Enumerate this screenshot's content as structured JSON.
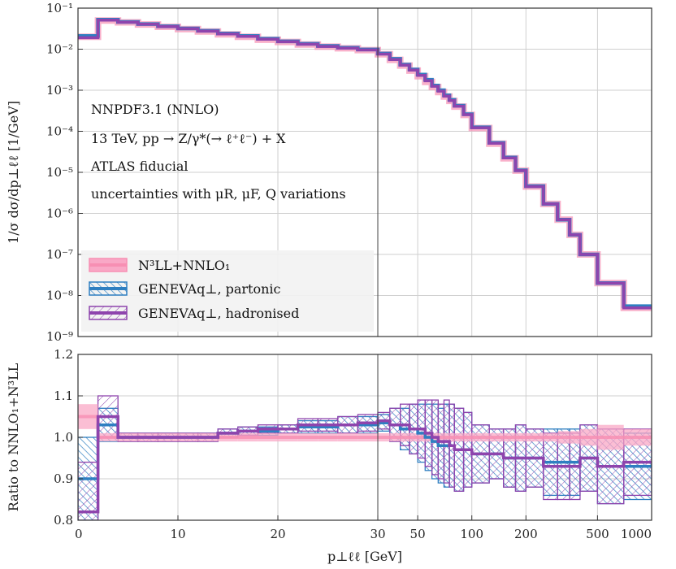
{
  "chart_data": [
    {
      "type": "line",
      "panel": "main",
      "scale": "log-y",
      "xlabel": "p⊥ℓℓ [GeV]",
      "ylabel": "1/σ dσ/dp⊥ℓℓ [1/GeV]",
      "ylim": [
        1e-09,
        0.1
      ],
      "yticks": [
        "10⁻⁹",
        "10⁻⁸",
        "10⁻⁷",
        "10⁻⁶",
        "10⁻⁵",
        "10⁻⁴",
        "10⁻³",
        "10⁻²",
        "10⁻¹"
      ],
      "grid": true,
      "x_edges": [
        0,
        2,
        4,
        6,
        8,
        10,
        12,
        14,
        16,
        18,
        20,
        22,
        24,
        26,
        28,
        30,
        35,
        40,
        45,
        50,
        55,
        60,
        65,
        70,
        75,
        80,
        90,
        100,
        125,
        150,
        175,
        200,
        250,
        300,
        350,
        400,
        500,
        700,
        1000
      ],
      "series": [
        {
          "name": "N³LL+NNLO₁",
          "color": "#f78fb3",
          "values": [
            0.02,
            0.05,
            0.045,
            0.04,
            0.035,
            0.031,
            0.027,
            0.023,
            0.02,
            0.017,
            0.015,
            0.013,
            0.0115,
            0.0105,
            0.0095,
            0.0075,
            0.0055,
            0.004,
            0.003,
            0.0022,
            0.0016,
            0.0012,
            0.0009,
            0.0007,
            0.00055,
            0.0004,
            0.00025,
            0.00012,
            5e-05,
            2.2e-05,
            1.1e-05,
            4.5e-06,
            1.7e-06,
            7e-07,
            3e-07,
            1e-07,
            2e-08,
            5e-09
          ]
        },
        {
          "name": "GENEVAq⊥, partonic",
          "color": "#2f7fc1",
          "values": [
            0.021,
            0.052,
            0.046,
            0.041,
            0.036,
            0.032,
            0.028,
            0.024,
            0.021,
            0.018,
            0.0155,
            0.0135,
            0.012,
            0.0108,
            0.0098,
            0.0078,
            0.0058,
            0.0042,
            0.0032,
            0.0024,
            0.0018,
            0.0013,
            0.001,
            0.00075,
            0.00058,
            0.00042,
            0.00026,
            0.000125,
            5.2e-05,
            2.3e-05,
            1.12e-05,
            4.6e-06,
            1.7e-06,
            7e-07,
            3e-07,
            1e-07,
            2e-08,
            5.5e-09
          ]
        },
        {
          "name": "GENEVAq⊥, hadronised",
          "color": "#8e44ad",
          "values": [
            0.019,
            0.051,
            0.0455,
            0.0405,
            0.0355,
            0.0315,
            0.0275,
            0.0235,
            0.0205,
            0.0175,
            0.0152,
            0.0132,
            0.0117,
            0.0106,
            0.0096,
            0.0076,
            0.0056,
            0.0041,
            0.0031,
            0.0023,
            0.0017,
            0.00125,
            0.00095,
            0.00072,
            0.00056,
            0.00041,
            0.000255,
            0.000122,
            5.1e-05,
            2.25e-05,
            1.1e-05,
            4.5e-06,
            1.7e-06,
            7e-07,
            3e-07,
            1e-07,
            2e-08,
            5e-09
          ]
        }
      ]
    },
    {
      "type": "line",
      "panel": "ratio",
      "xlabel": "p⊥ℓℓ [GeV]",
      "ylabel": "Ratio to NNLO₁+N³LL",
      "ylim": [
        0.8,
        1.2
      ],
      "yticks": [
        "0.8",
        "0.9",
        "1.0",
        "1.1",
        "1.2"
      ],
      "xticks": [
        "0",
        "10",
        "20",
        "30",
        "50",
        "100",
        "200",
        "500",
        "1000"
      ],
      "x_edges": [
        0,
        2,
        4,
        6,
        8,
        10,
        12,
        14,
        16,
        18,
        20,
        22,
        24,
        26,
        28,
        30,
        35,
        40,
        45,
        50,
        55,
        60,
        65,
        70,
        75,
        80,
        90,
        100,
        125,
        150,
        175,
        200,
        250,
        300,
        350,
        400,
        500,
        700,
        1000
      ],
      "series": [
        {
          "name": "N³LL+NNLO₁",
          "color": "#f78fb3",
          "central": [
            1.05,
            1.0,
            1.0,
            1.0,
            1.0,
            1.0,
            1.0,
            1.0,
            1.0,
            1.0,
            1.0,
            1.0,
            1.0,
            1.0,
            1.0,
            1.0,
            1.0,
            1.0,
            1.0,
            1.0,
            1.0,
            1.0,
            1.0,
            1.0,
            1.0,
            1.0,
            1.0,
            1.0,
            1.0,
            1.0,
            1.0,
            1.0,
            1.0,
            1.0,
            1.0,
            1.0,
            1.0,
            1.0
          ],
          "band": [
            0.03,
            0.01,
            0.01,
            0.01,
            0.01,
            0.01,
            0.01,
            0.01,
            0.01,
            0.01,
            0.01,
            0.01,
            0.01,
            0.01,
            0.01,
            0.01,
            0.01,
            0.01,
            0.01,
            0.01,
            0.01,
            0.01,
            0.01,
            0.01,
            0.01,
            0.01,
            0.01,
            0.01,
            0.01,
            0.01,
            0.01,
            0.01,
            0.01,
            0.015,
            0.015,
            0.02,
            0.03,
            0.02
          ]
        },
        {
          "name": "GENEVAq⊥, partonic",
          "color": "#2f7fc1",
          "central": [
            0.9,
            1.03,
            1.0,
            1.0,
            1.0,
            1.0,
            1.0,
            1.01,
            1.015,
            1.015,
            1.02,
            1.025,
            1.025,
            1.03,
            1.03,
            1.035,
            1.03,
            1.02,
            1.02,
            1.01,
            1.0,
            0.99,
            0.98,
            0.98,
            0.98,
            0.97,
            0.97,
            0.96,
            0.96,
            0.95,
            0.95,
            0.95,
            0.94,
            0.94,
            0.94,
            0.95,
            0.93,
            0.93
          ],
          "band": [
            0.1,
            0.04,
            0.01,
            0.01,
            0.01,
            0.01,
            0.01,
            0.01,
            0.01,
            0.01,
            0.01,
            0.015,
            0.015,
            0.02,
            0.02,
            0.02,
            0.04,
            0.05,
            0.06,
            0.07,
            0.08,
            0.09,
            0.09,
            0.1,
            0.1,
            0.1,
            0.09,
            0.07,
            0.06,
            0.07,
            0.08,
            0.07,
            0.08,
            0.08,
            0.08,
            0.08,
            0.09,
            0.08
          ]
        },
        {
          "name": "GENEVAq⊥, hadronised",
          "color": "#8e44ad",
          "central": [
            0.82,
            1.05,
            1.0,
            1.0,
            1.0,
            1.0,
            1.0,
            1.01,
            1.015,
            1.02,
            1.02,
            1.03,
            1.03,
            1.03,
            1.035,
            1.04,
            1.03,
            1.03,
            1.02,
            1.02,
            1.01,
            1.0,
            0.99,
            0.99,
            0.98,
            0.97,
            0.97,
            0.96,
            0.96,
            0.95,
            0.95,
            0.95,
            0.93,
            0.93,
            0.93,
            0.95,
            0.93,
            0.94
          ],
          "band": [
            0.12,
            0.05,
            0.01,
            0.01,
            0.01,
            0.01,
            0.01,
            0.01,
            0.01,
            0.01,
            0.01,
            0.015,
            0.015,
            0.02,
            0.02,
            0.02,
            0.04,
            0.05,
            0.06,
            0.07,
            0.08,
            0.09,
            0.09,
            0.1,
            0.1,
            0.1,
            0.09,
            0.07,
            0.06,
            0.07,
            0.08,
            0.07,
            0.08,
            0.08,
            0.08,
            0.08,
            0.09,
            0.08
          ]
        }
      ]
    }
  ],
  "annotations": [
    "NNPDF3.1 (NNLO)",
    "13 TeV, pp → Z/γ*(→ ℓ⁺ℓ⁻) + X",
    "ATLAS fiducial",
    "uncertainties with μR, μF, Q variations"
  ],
  "legend": {
    "placement": "bottom-left",
    "entries": [
      "N³LL+NNLO₁",
      "GENEVAq⊥, partonic",
      "GENEVAq⊥, hadronised"
    ]
  },
  "x_axis": {
    "scale": "linear below 30, log above 30",
    "break_at": 30,
    "range": [
      0,
      1000
    ]
  }
}
